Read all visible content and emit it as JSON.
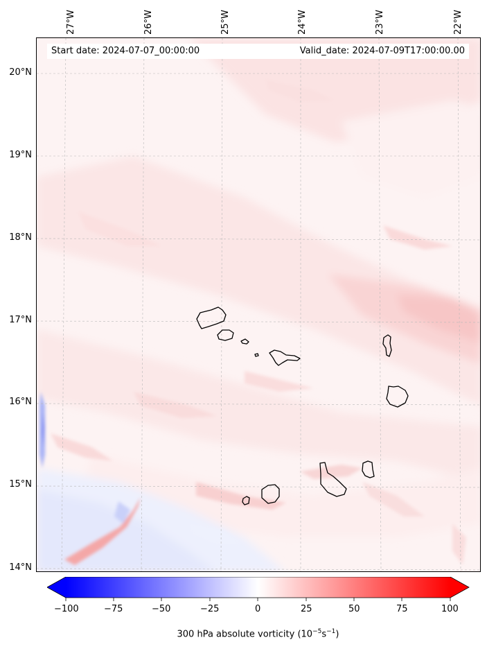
{
  "map": {
    "header": {
      "start_date": "Start date: 2024-07-07_00:00:00",
      "valid_date": "Valid_date: 2024-07-09T17:00:00.00"
    },
    "longitude_labels": [
      "27°W",
      "26°W",
      "25°W",
      "24°W",
      "23°W",
      "22°W"
    ],
    "latitude_labels": [
      "20°N",
      "19°N",
      "18°N",
      "17°N",
      "16°N",
      "15°N",
      "14°N"
    ],
    "gridlines": true,
    "coastline_color": "#000000"
  },
  "colorbar": {
    "label_prefix": "300 hPa absolute vorticity (10",
    "label_exp1": "−5",
    "label_mid": "s",
    "label_exp2": "−1",
    "label_suffix": ")",
    "ticks": [
      "−100",
      "−75",
      "−50",
      "−25",
      "0",
      "25",
      "50",
      "75",
      "100"
    ],
    "min_color": "#0000ff",
    "mid_color": "#ffffff",
    "max_color": "#ff0000",
    "extend": "both"
  }
}
